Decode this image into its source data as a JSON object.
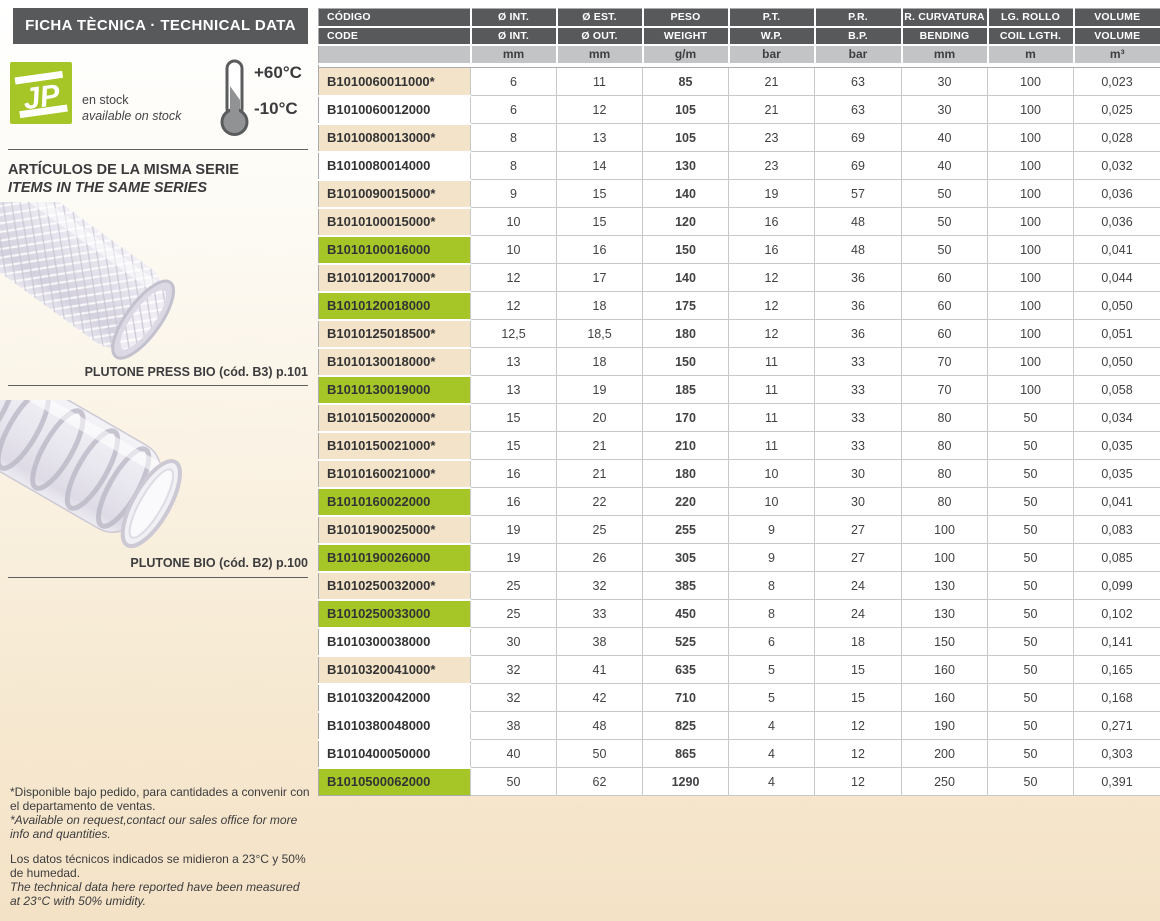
{
  "page": {
    "title_band": "FICHA TÈCNICA · TECHNICAL DATA"
  },
  "sidebar": {
    "logo_text": "JP",
    "stock_line1": "en stock",
    "stock_line2": "available on stock",
    "temp_max": "+60°C",
    "temp_min": "-10°C",
    "series_heading_es": "ARTÍCULOS DE LA MISMA SERIE",
    "series_heading_en": "ITEMS IN THE SAME SERIES",
    "product1_caption": "PLUTONE PRESS BIO (cód. B3) p.101",
    "product2_caption": "PLUTONE BIO (cód. B2) p.100",
    "footnote1_es": "*Disponible bajo pedido, para cantidades a convenir con el departamento de ventas.",
    "footnote1_en": "*Available on request,contact our sales office for more info and quantities.",
    "footnote2_es": "Los datos técnicos indicados se midieron a 23°C y 50% de humedad.",
    "footnote2_en": "The technical data here reported have been measured at 23°C with 50% umidity."
  },
  "colors": {
    "accent_green": "#a5c626",
    "header_dark": "#58595b",
    "units_gray": "#c2c4c6",
    "row_beige": "#f3e3c8",
    "page_beige": "#f4e2c6"
  },
  "table": {
    "columns": [
      {
        "top": "CÓDIGO",
        "bottom": "CODE",
        "unit": ""
      },
      {
        "top": "Ø INT.",
        "bottom": "Ø INT.",
        "unit": "mm"
      },
      {
        "top": "Ø EST.",
        "bottom": "Ø OUT.",
        "unit": "mm"
      },
      {
        "top": "PESO",
        "bottom": "WEIGHT",
        "unit": "g/m"
      },
      {
        "top": "P.T.",
        "bottom": "W.P.",
        "unit": "bar"
      },
      {
        "top": "P.R.",
        "bottom": "B.P.",
        "unit": "bar"
      },
      {
        "top": "R. CURVATURA",
        "bottom": "BENDING",
        "unit": "mm"
      },
      {
        "top": "LG. ROLLO",
        "bottom": "COIL LGTH.",
        "unit": "m"
      },
      {
        "top": "VOLUME",
        "bottom": "VOLUME",
        "unit": "m³"
      }
    ],
    "rows": [
      {
        "code": "B1010060011000*",
        "highlight": "beige",
        "values": [
          "6",
          "11",
          "85",
          "21",
          "63",
          "30",
          "100",
          "0,023"
        ]
      },
      {
        "code": "B1010060012000",
        "highlight": "white",
        "values": [
          "6",
          "12",
          "105",
          "21",
          "63",
          "30",
          "100",
          "0,025"
        ]
      },
      {
        "code": "B1010080013000*",
        "highlight": "beige",
        "values": [
          "8",
          "13",
          "105",
          "23",
          "69",
          "40",
          "100",
          "0,028"
        ]
      },
      {
        "code": "B1010080014000",
        "highlight": "white",
        "values": [
          "8",
          "14",
          "130",
          "23",
          "69",
          "40",
          "100",
          "0,032"
        ]
      },
      {
        "code": "B1010090015000*",
        "highlight": "beige",
        "values": [
          "9",
          "15",
          "140",
          "19",
          "57",
          "50",
          "100",
          "0,036"
        ]
      },
      {
        "code": "B1010100015000*",
        "highlight": "beige",
        "values": [
          "10",
          "15",
          "120",
          "16",
          "48",
          "50",
          "100",
          "0,036"
        ]
      },
      {
        "code": "B1010100016000",
        "highlight": "green",
        "values": [
          "10",
          "16",
          "150",
          "16",
          "48",
          "50",
          "100",
          "0,041"
        ]
      },
      {
        "code": "B1010120017000*",
        "highlight": "beige",
        "values": [
          "12",
          "17",
          "140",
          "12",
          "36",
          "60",
          "100",
          "0,044"
        ]
      },
      {
        "code": "B1010120018000",
        "highlight": "green",
        "values": [
          "12",
          "18",
          "175",
          "12",
          "36",
          "60",
          "100",
          "0,050"
        ]
      },
      {
        "code": "B1010125018500*",
        "highlight": "beige",
        "values": [
          "12,5",
          "18,5",
          "180",
          "12",
          "36",
          "60",
          "100",
          "0,051"
        ]
      },
      {
        "code": "B1010130018000*",
        "highlight": "beige",
        "values": [
          "13",
          "18",
          "150",
          "11",
          "33",
          "70",
          "100",
          "0,050"
        ]
      },
      {
        "code": "B1010130019000",
        "highlight": "green",
        "values": [
          "13",
          "19",
          "185",
          "11",
          "33",
          "70",
          "100",
          "0,058"
        ]
      },
      {
        "code": "B1010150020000*",
        "highlight": "beige",
        "values": [
          "15",
          "20",
          "170",
          "11",
          "33",
          "80",
          "50",
          "0,034"
        ]
      },
      {
        "code": "B1010150021000*",
        "highlight": "beige",
        "values": [
          "15",
          "21",
          "210",
          "11",
          "33",
          "80",
          "50",
          "0,035"
        ]
      },
      {
        "code": "B1010160021000*",
        "highlight": "beige",
        "values": [
          "16",
          "21",
          "180",
          "10",
          "30",
          "80",
          "50",
          "0,035"
        ]
      },
      {
        "code": "B1010160022000",
        "highlight": "green",
        "values": [
          "16",
          "22",
          "220",
          "10",
          "30",
          "80",
          "50",
          "0,041"
        ]
      },
      {
        "code": "B1010190025000*",
        "highlight": "beige",
        "values": [
          "19",
          "25",
          "255",
          "9",
          "27",
          "100",
          "50",
          "0,083"
        ]
      },
      {
        "code": "B1010190026000",
        "highlight": "green",
        "values": [
          "19",
          "26",
          "305",
          "9",
          "27",
          "100",
          "50",
          "0,085"
        ]
      },
      {
        "code": "B1010250032000*",
        "highlight": "beige",
        "values": [
          "25",
          "32",
          "385",
          "8",
          "24",
          "130",
          "50",
          "0,099"
        ]
      },
      {
        "code": "B1010250033000",
        "highlight": "green",
        "values": [
          "25",
          "33",
          "450",
          "8",
          "24",
          "130",
          "50",
          "0,102"
        ]
      },
      {
        "code": "B1010300038000",
        "highlight": "white",
        "values": [
          "30",
          "38",
          "525",
          "6",
          "18",
          "150",
          "50",
          "0,141"
        ]
      },
      {
        "code": "B1010320041000*",
        "highlight": "beige",
        "values": [
          "32",
          "41",
          "635",
          "5",
          "15",
          "160",
          "50",
          "0,165"
        ]
      },
      {
        "code": "B1010320042000",
        "highlight": "white",
        "values": [
          "32",
          "42",
          "710",
          "5",
          "15",
          "160",
          "50",
          "0,168"
        ]
      },
      {
        "code": "B1010380048000",
        "highlight": "white",
        "values": [
          "38",
          "48",
          "825",
          "4",
          "12",
          "190",
          "50",
          "0,271"
        ]
      },
      {
        "code": "B1010400050000",
        "highlight": "white",
        "values": [
          "40",
          "50",
          "865",
          "4",
          "12",
          "200",
          "50",
          "0,303"
        ]
      },
      {
        "code": "B1010500062000",
        "highlight": "green",
        "values": [
          "50",
          "62",
          "1290",
          "4",
          "12",
          "250",
          "50",
          "0,391"
        ]
      }
    ]
  }
}
